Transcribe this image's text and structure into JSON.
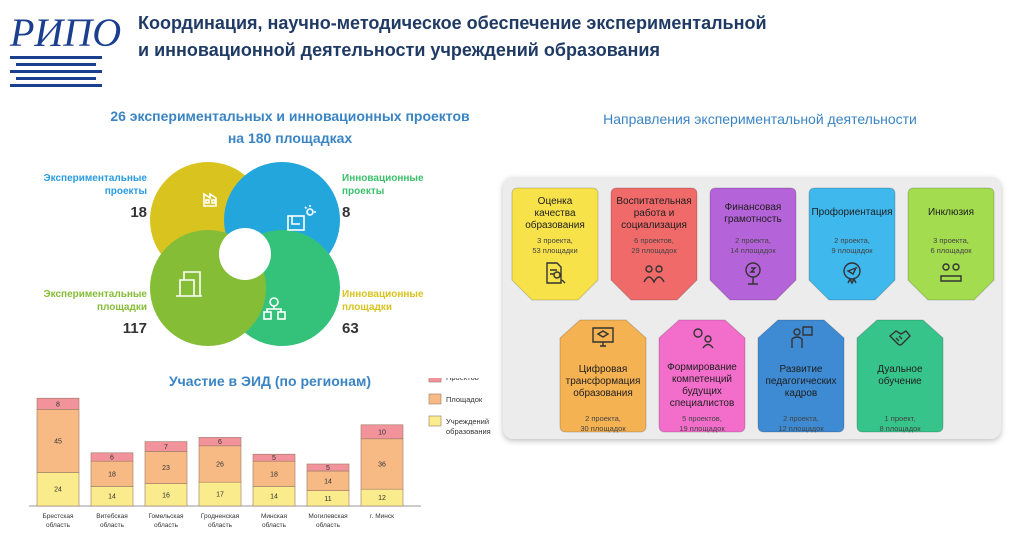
{
  "header": {
    "title_line1": "Координация, научно-методическое обеспечение экспериментальной",
    "title_line2": "и инновационной деятельности учреждений образования",
    "logo_text": "РИПО"
  },
  "projects_summary": {
    "heading_line1": "26 экспериментальных  и инновационных проектов",
    "heading_line2": "на 180  площадках",
    "items": [
      {
        "label_line1": "Экспериментальные",
        "label_line2": "проекты",
        "value": "18",
        "color": "#d8c31f",
        "icon": "factory-icon"
      },
      {
        "label_line1": "Инновационные",
        "label_line2": "проекты",
        "value": "8",
        "color": "#23a6dc",
        "icon": "blueprint-icon"
      },
      {
        "label_line1": "Экспериментальные",
        "label_line2": "площадки",
        "value": "117",
        "color": "#86bd37",
        "icon": "building-icon"
      },
      {
        "label_line1": "Инновационные",
        "label_line2": "площадки",
        "value": "63",
        "color": "#34c27a",
        "icon": "network-icon"
      }
    ]
  },
  "chart_title": "Участие в ЭИД (по регионам)",
  "chart_data": {
    "type": "bar",
    "stacked": true,
    "title": "Участие в ЭИД (по регионам)",
    "categories": [
      [
        "Брестская",
        "область"
      ],
      [
        "Витебская",
        "область"
      ],
      [
        "Гомельская",
        "область"
      ],
      [
        "Гродненская",
        "область"
      ],
      [
        "Минская",
        "область"
      ],
      [
        "Могилевская",
        "область"
      ],
      [
        "г. Минск"
      ]
    ],
    "series": [
      {
        "name": "Учреждений образования",
        "color": "#faeb8c",
        "values": [
          24,
          14,
          16,
          17,
          14,
          11,
          12
        ]
      },
      {
        "name": "Площадок",
        "color": "#f8ba84",
        "values": [
          45,
          18,
          23,
          26,
          18,
          14,
          36
        ]
      },
      {
        "name": "Проектов",
        "color": "#f2939b",
        "values": [
          8,
          6,
          7,
          6,
          5,
          5,
          10
        ]
      }
    ],
    "legend": {
      "position": "right",
      "labels": [
        "Проектов",
        "Площадок",
        "Учреждений образования"
      ]
    },
    "legend_lines": [
      [
        "Проектов"
      ],
      [
        "Площадок"
      ],
      [
        "Учреждений",
        "образования"
      ]
    ]
  },
  "directions": {
    "heading": "Направления экспериментальной деятельности",
    "top_row": [
      {
        "title": [
          "Оценка",
          "качества",
          "образования"
        ],
        "sub": [
          "3 проекта,",
          "53 площадки"
        ],
        "color": "#f7e24a",
        "icon": "document-search-icon"
      },
      {
        "title": [
          "Воспитательная",
          "работа и",
          "социализация"
        ],
        "sub": [
          "6 проектов,",
          "29 площадок"
        ],
        "color": "#f06a6a",
        "icon": "people-icon"
      },
      {
        "title": [
          "Финансовая",
          "грамотность"
        ],
        "sub": [
          "2 проекта,",
          "14 площадок"
        ],
        "color": "#b563d9",
        "icon": "money-tree-icon"
      },
      {
        "title": [
          "Профориентация"
        ],
        "sub": [
          "2 проекта,",
          "9 площадок"
        ],
        "color": "#3fb8ee",
        "icon": "compass-icon"
      },
      {
        "title": [
          "Инклюзия"
        ],
        "sub": [
          "3 проекта,",
          "6 площадок"
        ],
        "color": "#a3dc4f",
        "icon": "inclusion-icon"
      }
    ],
    "bottom_row": [
      {
        "title": [
          "Цифровая",
          "трансформация",
          "образования"
        ],
        "sub": [
          "2 проекта,",
          "30 площадок"
        ],
        "color": "#f5b253",
        "icon": "graduation-monitor-icon"
      },
      {
        "title": [
          "Формирование",
          "компетенций",
          "будущих",
          "специалистов"
        ],
        "sub": [
          "5 проектов,",
          "19 площадок"
        ],
        "color": "#f36ecb",
        "icon": "gears-person-icon"
      },
      {
        "title": [
          "Развитие",
          "педагогических",
          "кадров"
        ],
        "sub": [
          "2 проекта,",
          "12 площадок"
        ],
        "color": "#3e8bd3",
        "icon": "teacher-icon"
      },
      {
        "title": [
          "Дуальное",
          "обучение"
        ],
        "sub": [
          "1 проект,",
          "8 площадок"
        ],
        "color": "#37c48a",
        "icon": "handshake-icon"
      }
    ]
  }
}
